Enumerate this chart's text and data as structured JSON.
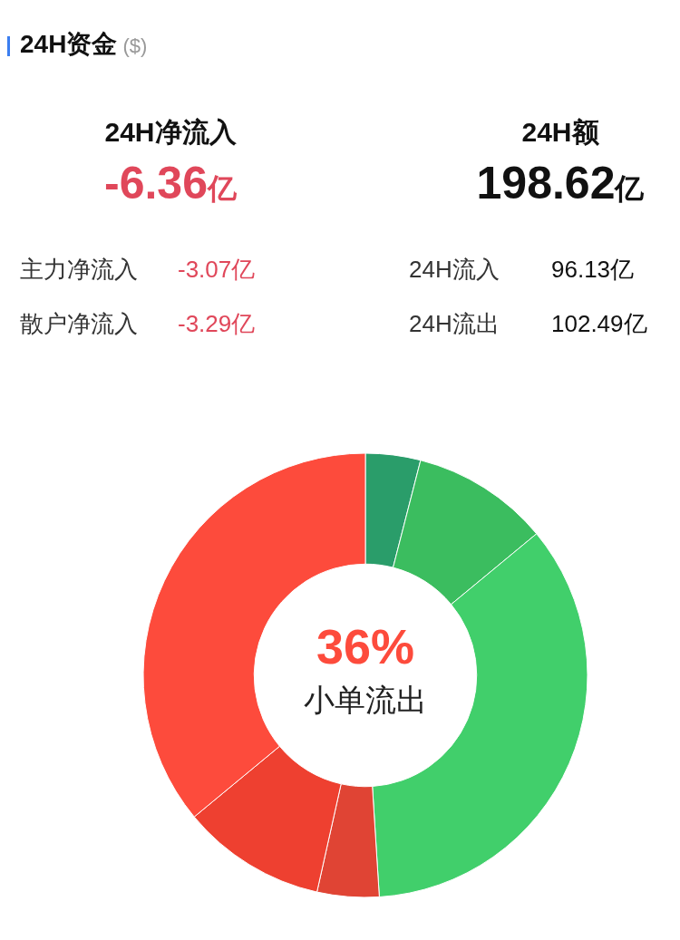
{
  "chart_data": [
    {
      "type": "other",
      "title": "24H资金",
      "subtitle": "($)",
      "annotations": [
        "24H净流入",
        "-6.36亿",
        "24H额",
        "198.62亿",
        "主力净流入",
        "-3.07亿",
        "散户净流入",
        "-3.29亿",
        "24H流入",
        "96.13亿",
        "24H流出",
        "102.49亿"
      ]
    },
    {
      "type": "donut",
      "categories": [
        null,
        null,
        null,
        null,
        null,
        "小单流出"
      ],
      "values": [
        4,
        10,
        35,
        4.5,
        10.5,
        36
      ],
      "colors": [
        "#2a9d6a",
        "#3bbd5f",
        "#41cf6b",
        "#e04434",
        "#ee4030",
        "#fd4b3c"
      ],
      "value_labels": [
        null,
        null,
        null,
        null,
        null,
        "36%"
      ],
      "legend": false
    }
  ]
}
